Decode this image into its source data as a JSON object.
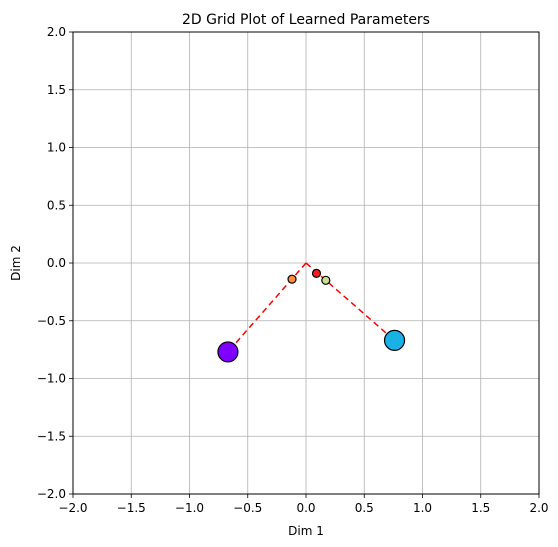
{
  "chart_data": {
    "type": "scatter",
    "title": "2D Grid Plot of Learned Parameters",
    "xlabel": "Dim 1",
    "ylabel": "Dim 2",
    "xlim": [
      -2.0,
      2.0
    ],
    "ylim": [
      -2.0,
      2.0
    ],
    "grid": true,
    "x_ticks": [
      "−2.0",
      "−1.5",
      "−1.0",
      "−0.5",
      "0.0",
      "0.5",
      "1.0",
      "1.5",
      "2.0"
    ],
    "y_ticks": [
      "−2.0",
      "−1.5",
      "−1.0",
      "−0.5",
      "0.0",
      "0.5",
      "1.0",
      "1.5",
      "2.0"
    ],
    "x_tick_values": [
      -2.0,
      -1.5,
      -1.0,
      -0.5,
      0.0,
      0.5,
      1.0,
      1.5,
      2.0
    ],
    "y_tick_values": [
      -2.0,
      -1.5,
      -1.0,
      -0.5,
      0.0,
      0.5,
      1.0,
      1.5,
      2.0
    ],
    "dashed_lines": [
      {
        "color": "#ff0000",
        "points": [
          [
            0.0,
            0.0
          ],
          [
            -0.67,
            -0.77
          ]
        ]
      },
      {
        "color": "#ff0000",
        "points": [
          [
            0.0,
            0.0
          ],
          [
            0.76,
            -0.67
          ]
        ]
      }
    ],
    "points": [
      {
        "x": -0.67,
        "y": -0.77,
        "size": "large",
        "color": "#8000ff"
      },
      {
        "x": 0.76,
        "y": -0.67,
        "size": "large",
        "color": "#1ab2e6"
      },
      {
        "x": -0.12,
        "y": -0.14,
        "size": "small",
        "color": "#ff8c40"
      },
      {
        "x": 0.09,
        "y": -0.09,
        "size": "small",
        "color": "#ff1a1a"
      },
      {
        "x": 0.17,
        "y": -0.15,
        "size": "small",
        "color": "#c9e08a"
      }
    ]
  }
}
